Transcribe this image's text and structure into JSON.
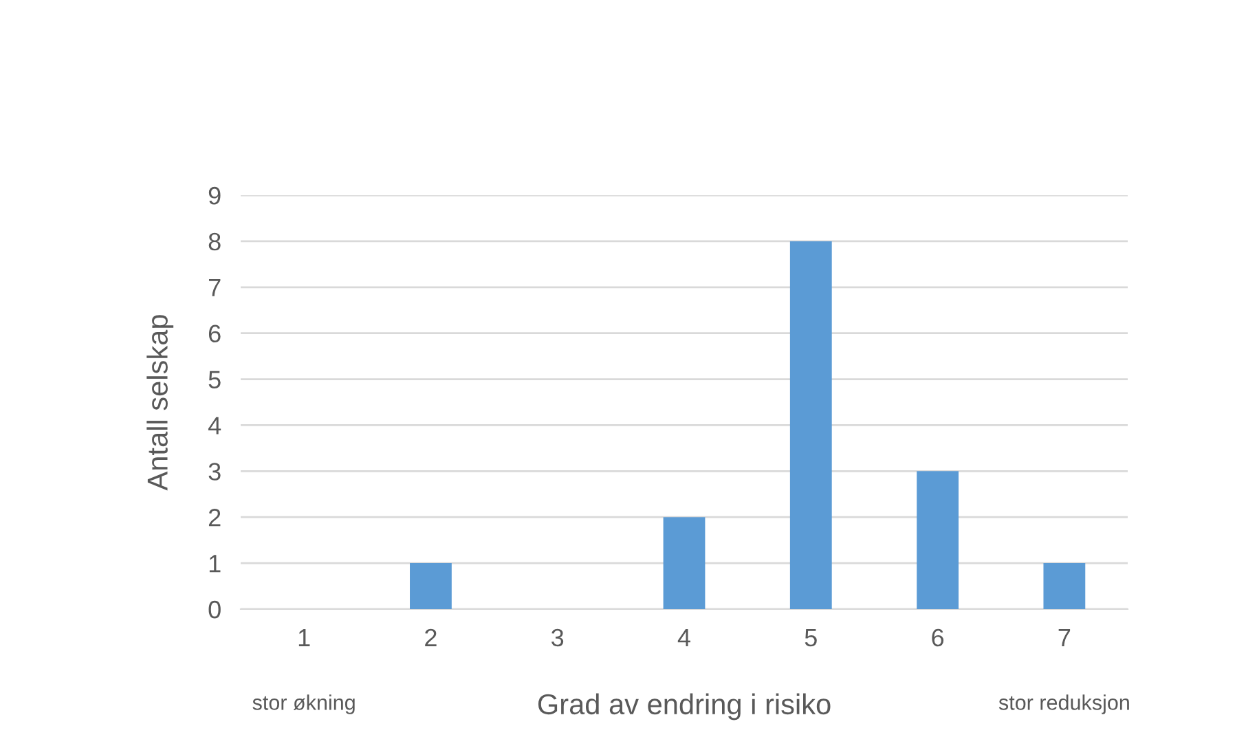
{
  "chart_data": {
    "type": "bar",
    "xlabel": "Grad av endring i risiko",
    "ylabel": "Antall selskap",
    "categories": [
      "1",
      "2",
      "3",
      "4",
      "5",
      "6",
      "7"
    ],
    "values": [
      0,
      1,
      0,
      2,
      8,
      3,
      1
    ],
    "color": "#5b9bd5",
    "ylim": [
      0,
      9
    ],
    "yticks": [
      0,
      1,
      2,
      3,
      4,
      5,
      6,
      7,
      8,
      9
    ],
    "grid": "y",
    "legend": false,
    "annotations": [
      "stor økning",
      "stor reduksjon"
    ]
  }
}
